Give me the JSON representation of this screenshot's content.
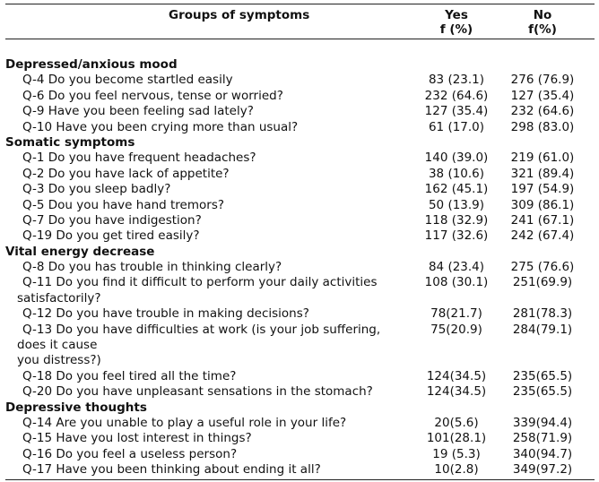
{
  "header": {
    "col_group": "Groups of symptoms",
    "col_yes_1": "Yes",
    "col_yes_2": "f (%)",
    "col_no_1": "No",
    "col_no_2": "f(%)"
  },
  "rows": [
    {
      "kind": "sec",
      "q": "Depressed/anxious mood",
      "yes": "",
      "no": ""
    },
    {
      "kind": "item",
      "q": "Q-4 Do you become startled easily",
      "yes": "83 (23.1)",
      "no": "276 (76.9)"
    },
    {
      "kind": "item",
      "q": "Q-6 Do you feel nervous, tense or worried?",
      "yes": "232 (64.6)",
      "no": "127 (35.4)"
    },
    {
      "kind": "item",
      "q": "Q-9 Have you been feeling sad lately?",
      "yes": "127 (35.4)",
      "no": "232 (64.6)"
    },
    {
      "kind": "item",
      "q": "Q-10 Have you been crying more than usual?",
      "yes": "61 (17.0)",
      "no": "298 (83.0)"
    },
    {
      "kind": "sec",
      "q": "Somatic symptoms",
      "yes": "",
      "no": ""
    },
    {
      "kind": "item",
      "q": "Q-1 Do you have frequent headaches?",
      "yes": "140 (39.0)",
      "no": "219 (61.0)"
    },
    {
      "kind": "item",
      "q": "Q-2 Do you have lack of appetite?",
      "yes": "38 (10.6)",
      "no": "321 (89.4)"
    },
    {
      "kind": "item",
      "q": "Q-3 Do you sleep badly?",
      "yes": "162 (45.1)",
      "no": "197 (54.9)"
    },
    {
      "kind": "item",
      "q": "Q-5 Dou you have hand tremors?",
      "yes": "50 (13.9)",
      "no": "309 (86.1)"
    },
    {
      "kind": "item",
      "q": "Q-7 Do you have indigestion?",
      "yes": "118 (32.9)",
      "no": "241 (67.1)"
    },
    {
      "kind": "item",
      "q": "Q-19 Do you get tired easily?",
      "yes": "117 (32.6)",
      "no": "242 (67.4)"
    },
    {
      "kind": "sec",
      "q": "Vital energy decrease",
      "yes": "",
      "no": ""
    },
    {
      "kind": "item",
      "q": "Q-8 Do you has trouble in thinking clearly?",
      "yes": "84 (23.4)",
      "no": "275 (76.6)"
    },
    {
      "kind": "item",
      "q": "Q-11 Do you find it difficult to perform your daily activities",
      "yes": "108 (30.1)",
      "no": "251(69.9)"
    },
    {
      "kind": "cont",
      "q": "satisfactorily?",
      "yes": "",
      "no": ""
    },
    {
      "kind": "item",
      "q": "Q-12 Do you have trouble in making decisions?",
      "yes": "78(21.7)",
      "no": "281(78.3)"
    },
    {
      "kind": "item",
      "q": "Q-13 Do you have difficulties at work (is your job suffering,",
      "yes": "75(20.9)",
      "no": "284(79.1)"
    },
    {
      "kind": "cont",
      "q": "does it cause",
      "yes": "",
      "no": ""
    },
    {
      "kind": "cont",
      "q": " you distress?)",
      "yes": "",
      "no": ""
    },
    {
      "kind": "item",
      "q": "Q-18 Do you feel tired all the time?",
      "yes": "124(34.5)",
      "no": "235(65.5)"
    },
    {
      "kind": "item",
      "q": "Q-20 Do you have unpleasant sensations in the stomach?",
      "yes": "124(34.5)",
      "no": "235(65.5)"
    },
    {
      "kind": "sec",
      "q": "Depressive thoughts",
      "yes": "",
      "no": ""
    },
    {
      "kind": "item",
      "q": "Q-14 Are you unable to play a useful role in your life?",
      "yes": "20(5.6)",
      "no": "339(94.4)"
    },
    {
      "kind": "item",
      "q": "Q-15 Have you lost interest in things?",
      "yes": "101(28.1)",
      "no": "258(71.9)"
    },
    {
      "kind": "item",
      "q": "Q-16 Do you feel a useless person?",
      "yes": "19 (5.3)",
      "no": "340(94.7)"
    },
    {
      "kind": "item",
      "q": "Q-17 Have you been thinking about ending it all?",
      "yes": "10(2.8)",
      "no": "349(97.2)"
    }
  ]
}
